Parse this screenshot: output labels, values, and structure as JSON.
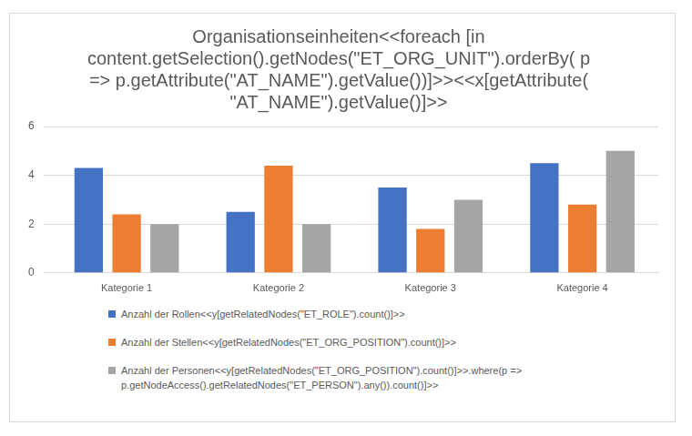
{
  "chart_data": {
    "type": "bar",
    "title": "Organisationseinheiten<<foreach [in content.getSelection().getNodes(\"ET_ORG_UNIT\").orderBy( p => p.getAttribute(\"AT_NAME\").getValue())]>><<x[getAttribute( \"AT_NAME\").getValue()]>>",
    "categories": [
      "Kategorie 1",
      "Kategorie 2",
      "Kategorie 3",
      "Kategorie 4"
    ],
    "series": [
      {
        "name": "Anzahl der Rollen<<y[getRelatedNodes(\"ET_ROLE\").count()]>>",
        "color": "#4472c4",
        "values": [
          4.3,
          2.5,
          3.5,
          4.5
        ]
      },
      {
        "name": "Anzahl der Stellen<<y[getRelatedNodes(\"ET_ORG_POSITION\").count()]>>",
        "color": "#ed7d31",
        "values": [
          2.4,
          4.4,
          1.8,
          2.8
        ]
      },
      {
        "name": "Anzahl der Personen<<y[getRelatedNodes(\"ET_ORG_POSITION\").count()]>>.where(p => p.getNodeAccess().getRelatedNodes(\"ET_PERSON\").any()).count()]>>",
        "color": "#a5a5a5",
        "values": [
          2,
          2,
          3,
          5
        ]
      }
    ],
    "ylim": [
      0,
      6
    ],
    "yticks": [
      0,
      2,
      4,
      6
    ],
    "grid": true,
    "legend": "bottom"
  }
}
